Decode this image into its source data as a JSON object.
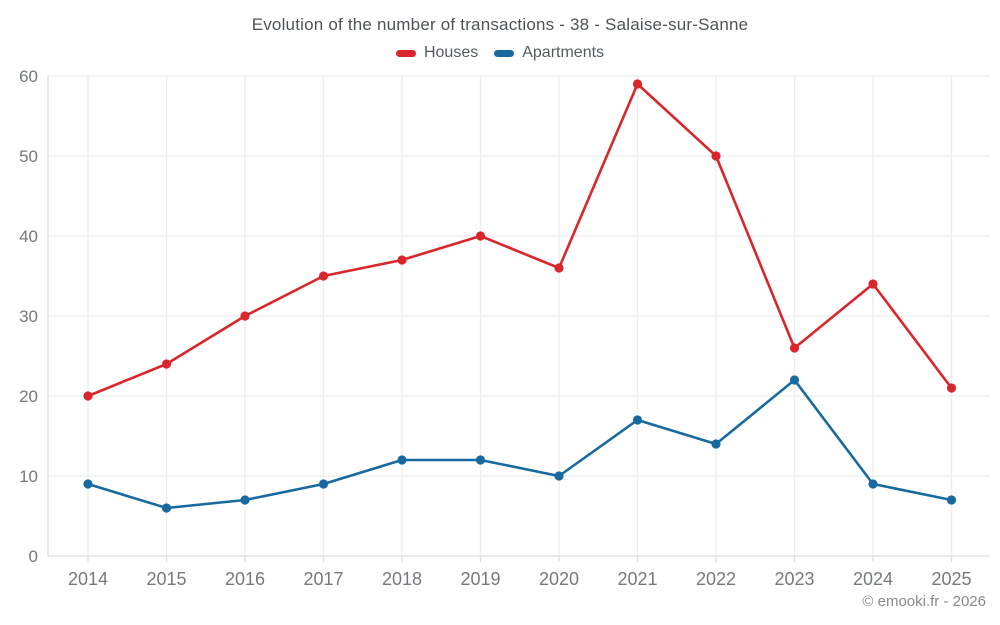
{
  "title": "Evolution of the number of transactions - 38 - Salaise-sur-Sanne",
  "footer": "© emooki.fr - 2026",
  "palette": {
    "houses_red": "#d9262c",
    "apartments_blue": "#17699f",
    "grid_line": "#ebedee",
    "axis_line": "#dcdee0",
    "tick_label": "#75797d",
    "title_text": "#4e5358",
    "legend_text": "#565b60",
    "footer_text": "#85898c"
  },
  "chart_data": {
    "type": "line",
    "title": "Evolution of the number of transactions - 38 - Salaise-sur-Sanne",
    "x": [
      2014,
      2015,
      2016,
      2017,
      2018,
      2019,
      2020,
      2021,
      2022,
      2023,
      2024,
      2025
    ],
    "series": [
      {
        "name": "Houses",
        "color": "#d9262c",
        "values": [
          20,
          24,
          30,
          35,
          37,
          40,
          36,
          59,
          50,
          26,
          34,
          21
        ]
      },
      {
        "name": "Apartments",
        "color": "#17699f",
        "values": [
          9,
          6,
          7,
          9,
          12,
          12,
          10,
          17,
          14,
          22,
          9,
          7
        ]
      }
    ],
    "xlabel": "",
    "ylabel": "",
    "ylim": [
      0,
      60
    ],
    "ytick_step": 10,
    "yticks": [
      0,
      10,
      20,
      30,
      40,
      50,
      60
    ],
    "grid": true,
    "legend_position": "top",
    "marker": "circle"
  }
}
